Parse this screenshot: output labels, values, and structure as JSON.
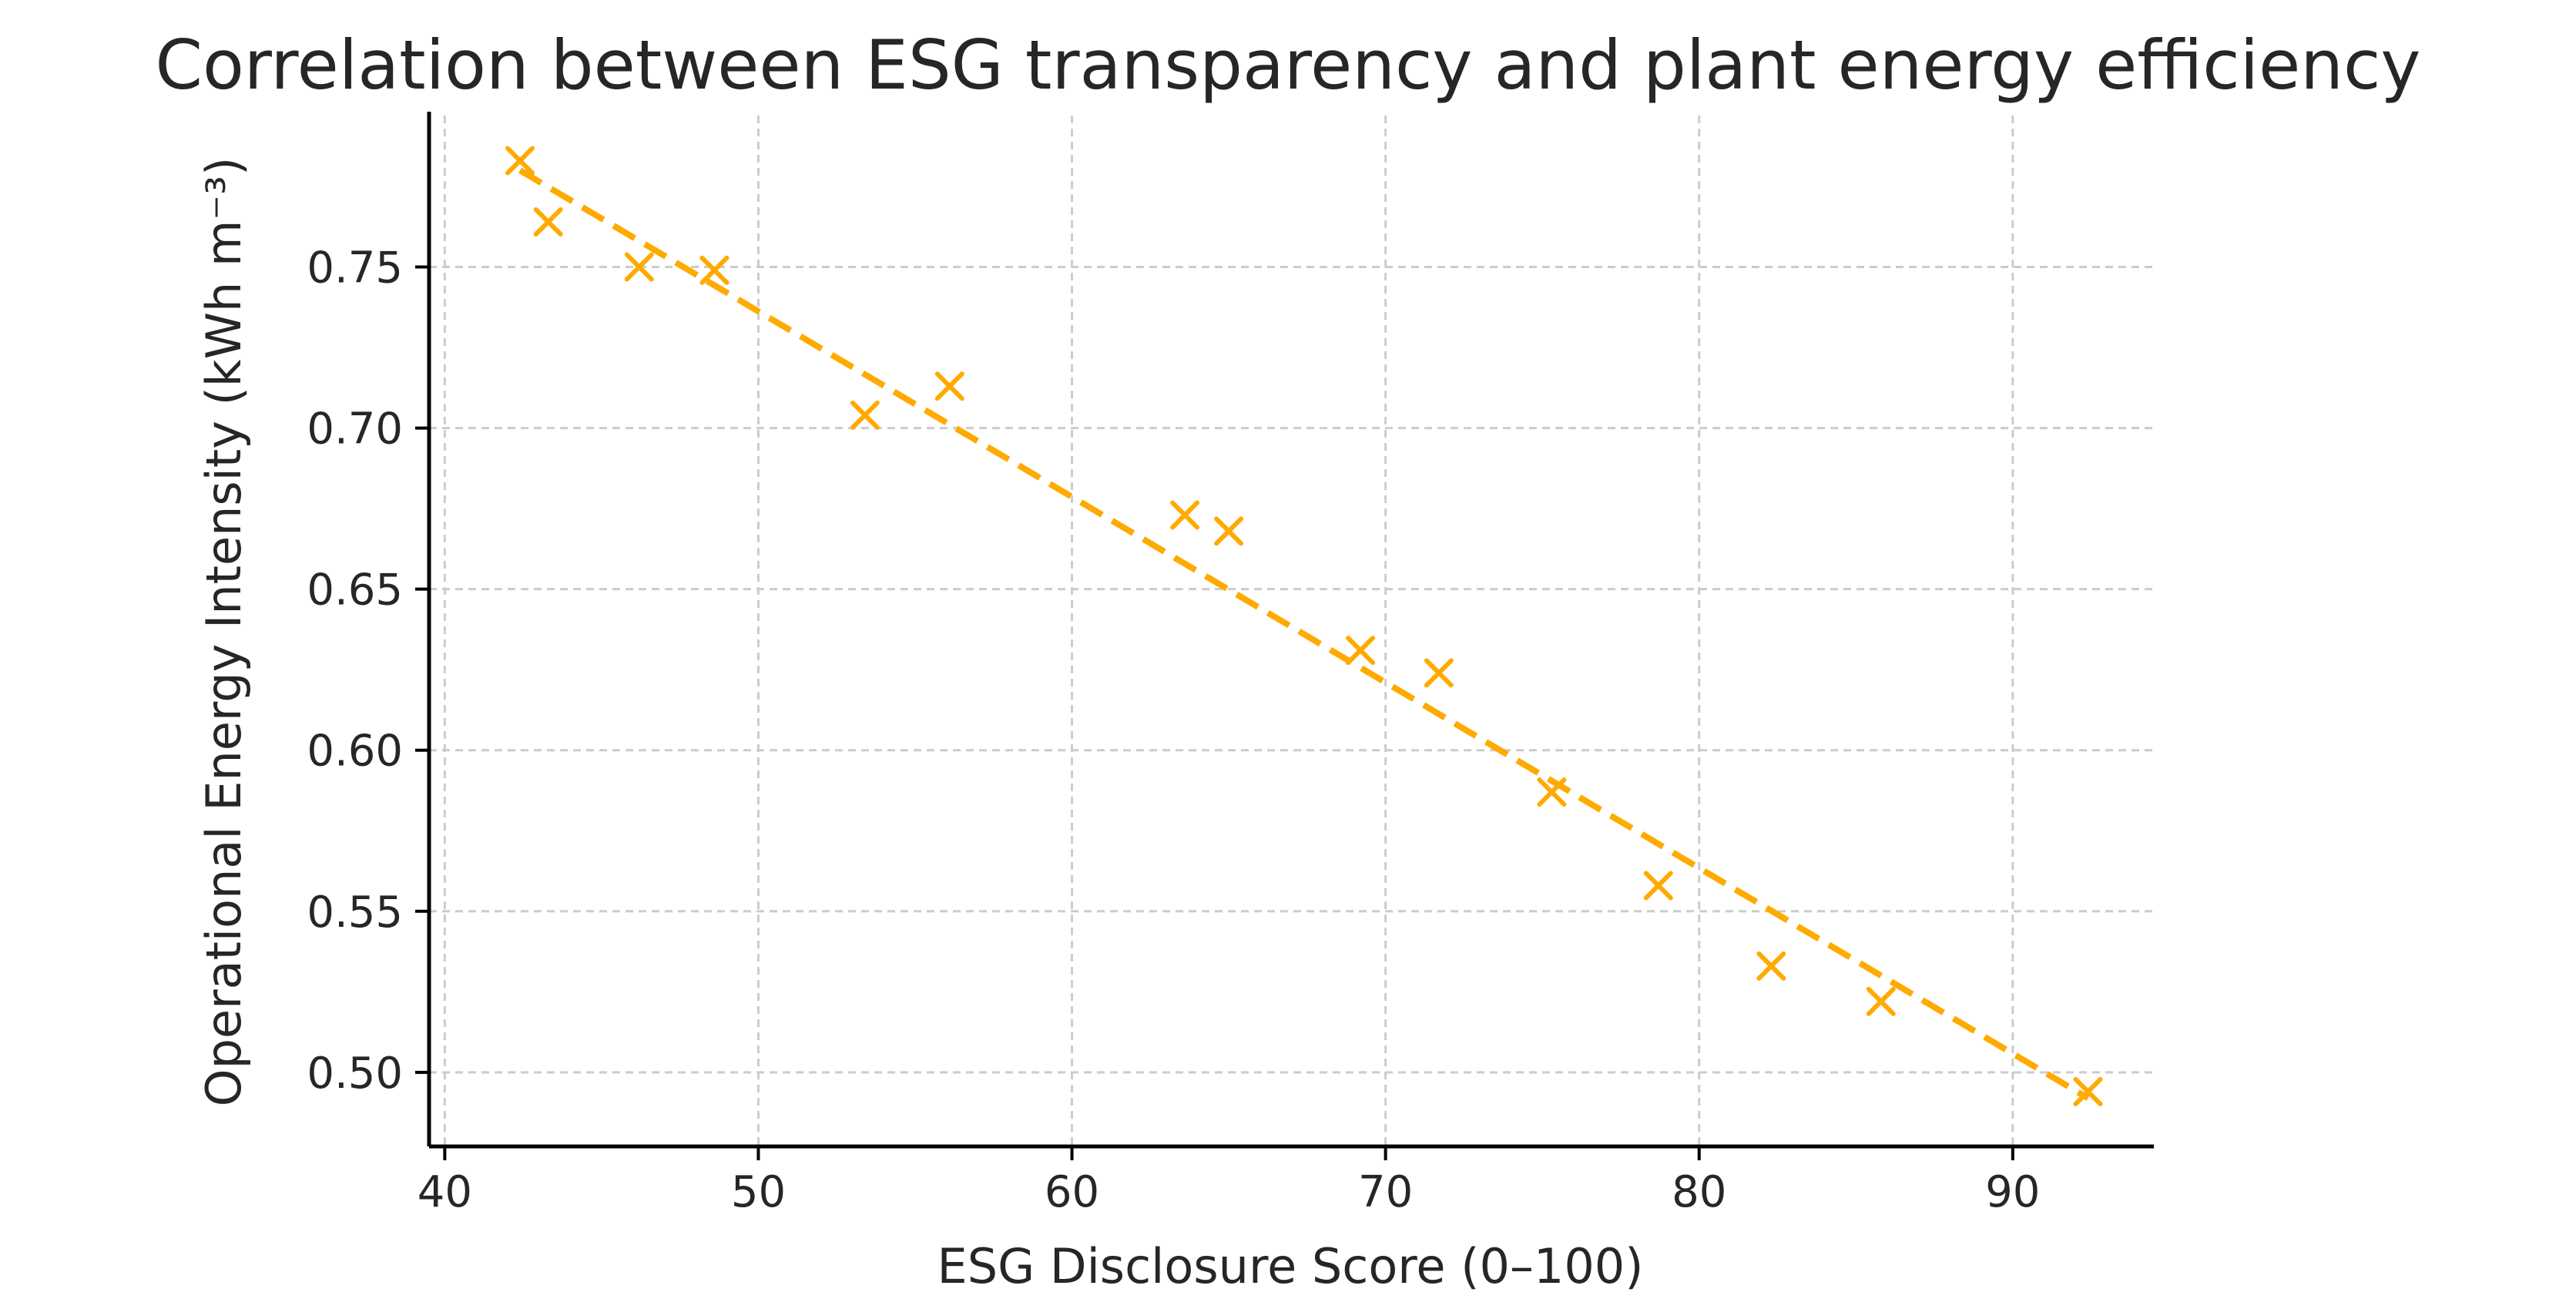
{
  "chart_data": {
    "type": "scatter",
    "title": "Correlation between ESG transparency and plant energy efficiency",
    "xlabel": "ESG Disclosure Score (0–100)",
    "ylabel": "Operational Energy Intensity (kWh m⁻³)",
    "xlim": [
      39.5,
      94.5
    ],
    "ylim": [
      0.477,
      0.797
    ],
    "x_ticks": [
      40,
      50,
      60,
      70,
      80,
      90
    ],
    "x_tick_labels": [
      "40",
      "50",
      "60",
      "70",
      "80",
      "90"
    ],
    "y_ticks": [
      0.5,
      0.55,
      0.6,
      0.65,
      0.7,
      0.75
    ],
    "y_tick_labels": [
      "0.50",
      "0.55",
      "0.60",
      "0.65",
      "0.70",
      "0.75"
    ],
    "grid": true,
    "legend": "none",
    "marker": "x",
    "color": "#FFAA00",
    "points": {
      "x": [
        42.4,
        43.3,
        46.2,
        48.6,
        53.4,
        56.1,
        63.6,
        65.0,
        69.2,
        71.7,
        75.3,
        78.7,
        82.3,
        85.8,
        92.4
      ],
      "y": [
        0.783,
        0.764,
        0.75,
        0.749,
        0.704,
        0.713,
        0.673,
        0.668,
        0.631,
        0.624,
        0.587,
        0.558,
        0.533,
        0.522,
        0.494
      ]
    },
    "trend_line": {
      "style": "dashed",
      "x": [
        42.4,
        92.4
      ],
      "y": [
        0.78,
        0.492
      ]
    }
  }
}
